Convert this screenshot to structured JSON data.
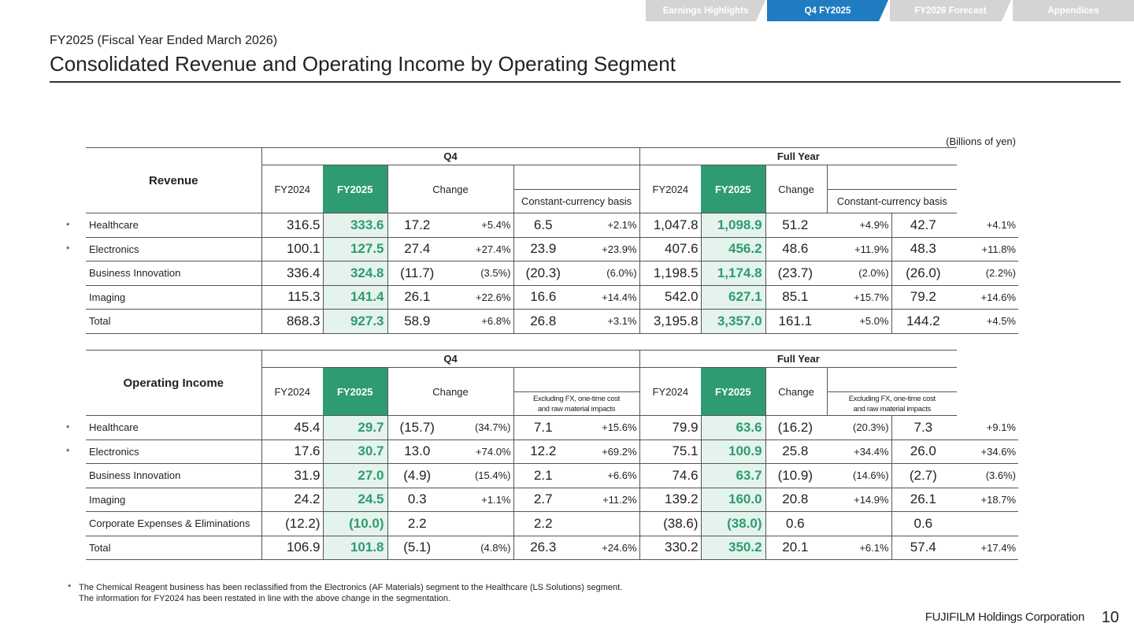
{
  "nav": {
    "tabs": [
      {
        "label": "Earnings Highlights",
        "active": false
      },
      {
        "label": "Q4 FY2025",
        "active": true
      },
      {
        "label": "FY2026 Forecast",
        "active": false
      },
      {
        "label": "Appendices",
        "active": false
      }
    ],
    "active_color": "#1f7cc0",
    "inactive_color": "#d4d4d4"
  },
  "header": {
    "subtitle": "FY2025 (Fiscal Year Ended March 2026)",
    "title": "Consolidated Revenue and Operating Income by Operating Segment"
  },
  "unit_note": "(Billions of yen)",
  "highlight_color": "#2e9b73",
  "columns": {
    "group_q4": "Q4",
    "group_fy": "Full Year",
    "fy2024": "FY2024",
    "fy2025": "FY2025",
    "change": "Change"
  },
  "revenue": {
    "heading": "Revenue",
    "sub_heading": "Constant-currency basis",
    "rows": [
      {
        "label": "Healthcare",
        "star": "*",
        "q4": [
          "316.5",
          "333.6",
          "17.2",
          "+5.4%",
          "6.5",
          "+2.1%"
        ],
        "fy": [
          "1,047.8",
          "1,098.9",
          "51.2",
          "+4.9%",
          "42.7",
          "+4.1%"
        ]
      },
      {
        "label": "Electronics",
        "star": "*",
        "q4": [
          "100.1",
          "127.5",
          "27.4",
          "+27.4%",
          "23.9",
          "+23.9%"
        ],
        "fy": [
          "407.6",
          "456.2",
          "48.6",
          "+11.9%",
          "48.3",
          "+11.8%"
        ]
      },
      {
        "label": "Business Innovation",
        "star": "",
        "q4": [
          "336.4",
          "324.8",
          "(11.7)",
          "(3.5%)",
          "(20.3)",
          "(6.0%)"
        ],
        "fy": [
          "1,198.5",
          "1,174.8",
          "(23.7)",
          "(2.0%)",
          "(26.0)",
          "(2.2%)"
        ]
      },
      {
        "label": "Imaging",
        "star": "",
        "q4": [
          "115.3",
          "141.4",
          "26.1",
          "+22.6%",
          "16.6",
          "+14.4%"
        ],
        "fy": [
          "542.0",
          "627.1",
          "85.1",
          "+15.7%",
          "79.2",
          "+14.6%"
        ]
      },
      {
        "label": "Total",
        "star": "",
        "q4": [
          "868.3",
          "927.3",
          "58.9",
          "+6.8%",
          "26.8",
          "+3.1%"
        ],
        "fy": [
          "3,195.8",
          "3,357.0",
          "161.1",
          "+5.0%",
          "144.2",
          "+4.5%"
        ]
      }
    ]
  },
  "operating_income": {
    "heading": "Operating Income",
    "sub_heading_line1": "Excluding FX, one-time cost",
    "sub_heading_line2": "and raw material impacts",
    "rows": [
      {
        "label": "Healthcare",
        "star": "*",
        "q4": [
          "45.4",
          "29.7",
          "(15.7)",
          "(34.7%)",
          "7.1",
          "+15.6%"
        ],
        "fy": [
          "79.9",
          "63.6",
          "(16.2)",
          "(20.3%)",
          "7.3",
          "+9.1%"
        ]
      },
      {
        "label": "Electronics",
        "star": "*",
        "q4": [
          "17.6",
          "30.7",
          "13.0",
          "+74.0%",
          "12.2",
          "+69.2%"
        ],
        "fy": [
          "75.1",
          "100.9",
          "25.8",
          "+34.4%",
          "26.0",
          "+34.6%"
        ]
      },
      {
        "label": "Business Innovation",
        "star": "",
        "q4": [
          "31.9",
          "27.0",
          "(4.9)",
          "(15.4%)",
          "2.1",
          "+6.6%"
        ],
        "fy": [
          "74.6",
          "63.7",
          "(10.9)",
          "(14.6%)",
          "(2.7)",
          "(3.6%)"
        ]
      },
      {
        "label": "Imaging",
        "star": "",
        "q4": [
          "24.2",
          "24.5",
          "0.3",
          "+1.1%",
          "2.7",
          "+11.2%"
        ],
        "fy": [
          "139.2",
          "160.0",
          "20.8",
          "+14.9%",
          "26.1",
          "+18.7%"
        ]
      },
      {
        "label": "Corporate Expenses & Eliminations",
        "star": "",
        "q4": [
          "(12.2)",
          "(10.0)",
          "2.2",
          "",
          "2.2",
          ""
        ],
        "fy": [
          "(38.6)",
          "(38.0)",
          "0.6",
          "",
          "0.6",
          ""
        ]
      },
      {
        "label": "Total",
        "star": "",
        "q4": [
          "106.9",
          "101.8",
          "(5.1)",
          "(4.8%)",
          "26.3",
          "+24.6%"
        ],
        "fy": [
          "330.2",
          "350.2",
          "20.1",
          "+6.1%",
          "57.4",
          "+17.4%"
        ]
      }
    ]
  },
  "footnote": {
    "mark": "*",
    "line1": "The Chemical Reagent business has been reclassified from the Electronics (AF Materials) segment to the Healthcare (LS Solutions) segment.",
    "line2": "The information for FY2024 has been restated in line with the above change in the segmentation."
  },
  "footer": {
    "company": "FUJIFILM Holdings Corporation",
    "page": "10"
  }
}
